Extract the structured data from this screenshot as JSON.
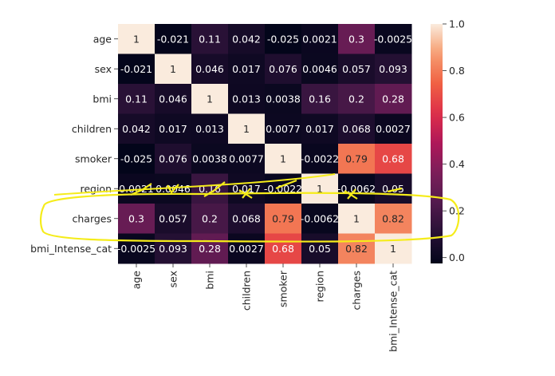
{
  "chart_data": {
    "type": "heatmap",
    "rows": [
      "age",
      "sex",
      "bmi",
      "children",
      "smoker",
      "region",
      "charges",
      "bmi_Intense_cat"
    ],
    "columns": [
      "age",
      "sex",
      "bmi",
      "children",
      "smoker",
      "region",
      "charges",
      "bmi_Intense_cat"
    ],
    "values": [
      [
        1,
        -0.021,
        0.11,
        0.042,
        -0.025,
        0.0021,
        0.3,
        -0.0025
      ],
      [
        -0.021,
        1,
        0.046,
        0.017,
        0.076,
        0.0046,
        0.057,
        0.093
      ],
      [
        0.11,
        0.046,
        1,
        0.013,
        0.0038,
        0.16,
        0.2,
        0.28
      ],
      [
        0.042,
        0.017,
        0.013,
        1,
        0.0077,
        0.017,
        0.068,
        0.0027
      ],
      [
        -0.025,
        0.076,
        0.0038,
        0.0077,
        1,
        -0.0022,
        0.79,
        0.68
      ],
      [
        0.0021,
        0.0046,
        0.16,
        0.017,
        -0.0022,
        1,
        -0.0062,
        0.05
      ],
      [
        0.3,
        0.057,
        0.2,
        0.068,
        0.79,
        -0.0062,
        1,
        0.82
      ],
      [
        -0.0025,
        0.093,
        0.28,
        0.0027,
        0.68,
        0.05,
        0.82,
        1
      ]
    ],
    "annotations": [
      [
        "1",
        "-0.021",
        "0.11",
        "0.042",
        "-0.025",
        "0.0021",
        "0.3",
        "-0.0025"
      ],
      [
        "-0.021",
        "1",
        "0.046",
        "0.017",
        "0.076",
        "0.0046",
        "0.057",
        "0.093"
      ],
      [
        "0.11",
        "0.046",
        "1",
        "0.013",
        "0.0038",
        "0.16",
        "0.2",
        "0.28"
      ],
      [
        "0.042",
        "0.017",
        "0.013",
        "1",
        "0.0077",
        "0.017",
        "0.068",
        "0.0027"
      ],
      [
        "-0.025",
        "0.076",
        "0.0038",
        "0.0077",
        "1",
        "-0.0022",
        "0.79",
        "0.68"
      ],
      [
        "0.0021",
        "0.0046",
        "0.16",
        "0.017",
        "-0.0022",
        "1",
        "-0.0062",
        "0.05"
      ],
      [
        "0.3",
        "0.057",
        "0.2",
        "0.068",
        "0.79",
        "-0.0062",
        "1",
        "0.82"
      ],
      [
        "-0.0025",
        "0.093",
        "0.28",
        "0.0027",
        "0.68",
        "0.05",
        "0.82",
        "1"
      ]
    ],
    "colormap": "rocket",
    "vmin": -0.025,
    "vmax": 1.0,
    "colorbar_ticks": [
      0.0,
      0.2,
      0.4,
      0.6,
      0.8,
      1.0
    ],
    "colorbar_tick_labels": [
      "0.0",
      "0.2",
      "0.4",
      "0.6",
      "0.8",
      "1.0"
    ],
    "annotation_overlay": {
      "color": "#f5ec1a",
      "description_marks": [
        "ellipse around charges row",
        "check marks over region row"
      ]
    }
  }
}
